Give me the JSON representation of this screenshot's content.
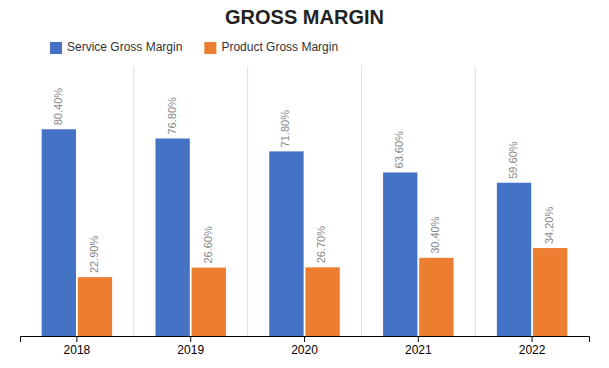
{
  "chart_data": {
    "type": "bar",
    "title": "GROSS MARGIN",
    "categories": [
      "2018",
      "2019",
      "2020",
      "2021",
      "2022"
    ],
    "series": [
      {
        "name": "Service Gross Margin",
        "color": "#4472C4",
        "values": [
          80.4,
          76.8,
          71.8,
          63.6,
          59.6
        ],
        "value_labels": [
          "80.40%",
          "76.80%",
          "71.80%",
          "63.60%",
          "59.60%"
        ]
      },
      {
        "name": "Product Gross Margin",
        "color": "#ED7D31",
        "values": [
          22.9,
          26.6,
          26.7,
          30.4,
          34.2
        ],
        "value_labels": [
          "22.90%",
          "26.60%",
          "26.70%",
          "30.40%",
          "34.20%"
        ]
      }
    ],
    "ylim": [
      0,
      105
    ],
    "data_labels": true,
    "tick_labels": "x",
    "grid": true,
    "legend": "top-left"
  }
}
